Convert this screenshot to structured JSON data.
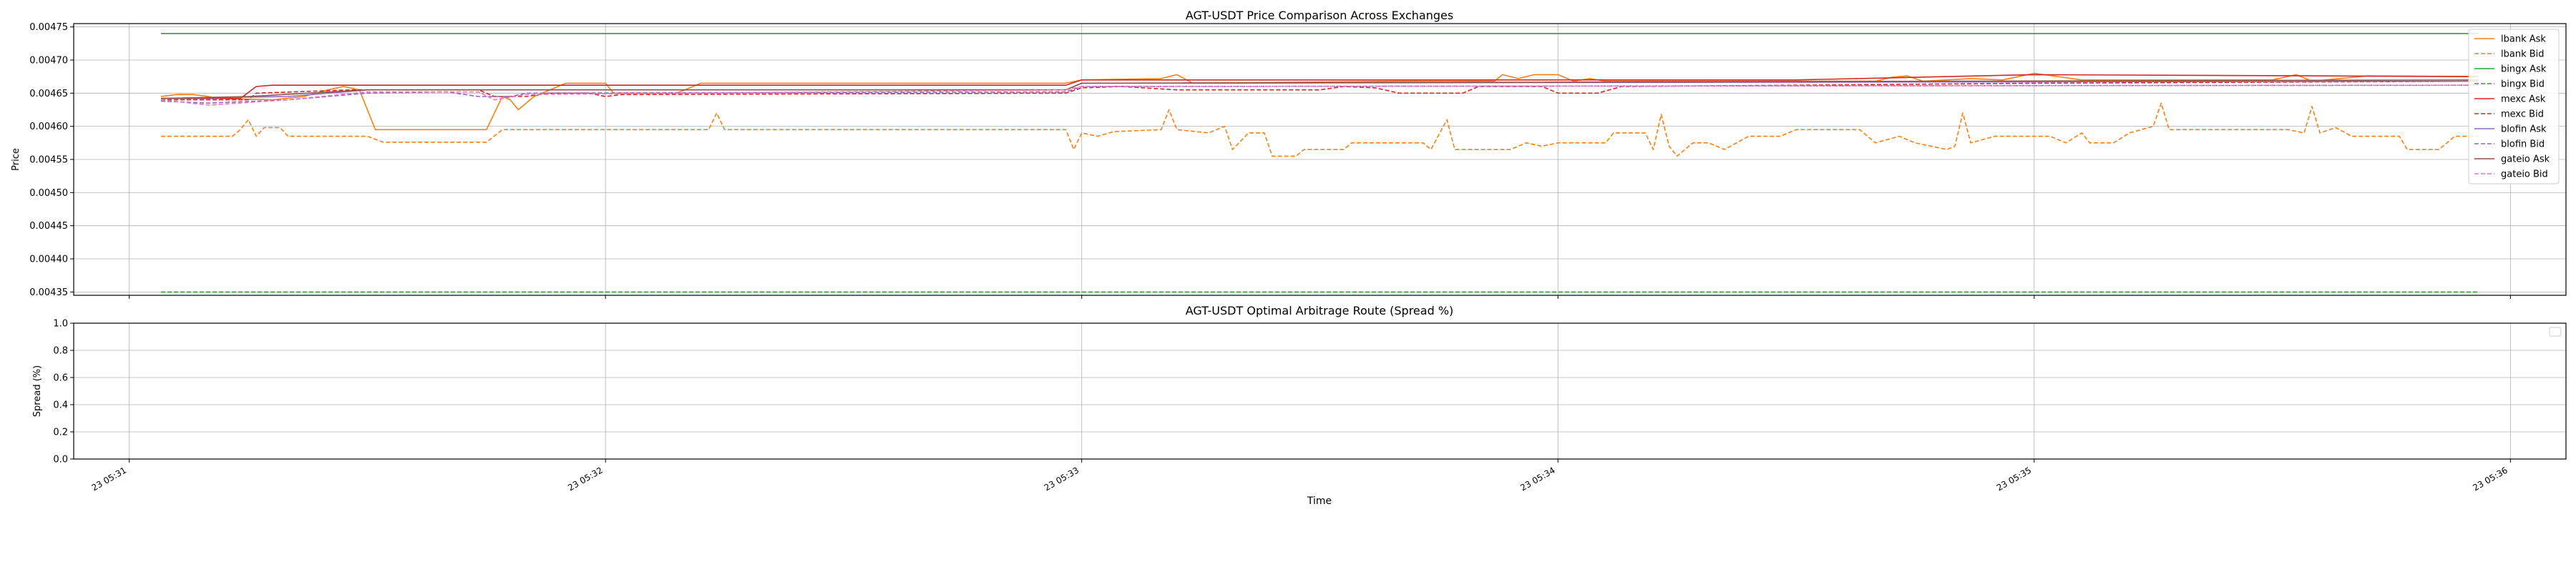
{
  "figure": {
    "xlabel": "Time",
    "x_ticks": [
      "23 05:31",
      "23 05:32",
      "23 05:33",
      "23 05:34",
      "23 05:35",
      "23 05:36"
    ]
  },
  "chart_data": [
    {
      "type": "line",
      "title": "AGT-USDT Price Comparison Across Exchanges",
      "xlabel": "Time",
      "ylabel": "Price",
      "xlim": [
        "23 05:30:53",
        "23 05:36:07"
      ],
      "ylim": [
        0.004345,
        0.004755
      ],
      "y_ticks": [
        "0.00435",
        "0.00440",
        "0.00445",
        "0.00450",
        "0.00455",
        "0.00460",
        "0.00465",
        "0.00470",
        "0.00475"
      ],
      "grid": true,
      "legend_position": "right",
      "series": [
        {
          "name": "lbank Ask",
          "color": "#ff7f0e",
          "dash": "solid",
          "points": [
            [
              "05:31:04",
              0.004645
            ],
            [
              "05:31:06",
              0.004648
            ],
            [
              "05:31:08",
              0.004648
            ],
            [
              "05:31:10",
              0.004645
            ],
            [
              "05:31:11",
              0.004642
            ],
            [
              "05:31:18",
              0.00464
            ],
            [
              "05:31:22",
              0.004645
            ],
            [
              "05:31:25",
              0.004655
            ],
            [
              "05:31:27",
              0.00466
            ],
            [
              "05:31:29",
              0.004655
            ],
            [
              "05:31:31",
              0.004595
            ],
            [
              "05:31:45",
              0.004595
            ],
            [
              "05:31:47",
              0.004645
            ],
            [
              "05:31:48",
              0.00464
            ],
            [
              "05:31:49",
              0.004625
            ],
            [
              "05:31:51",
              0.004645
            ],
            [
              "05:31:55",
              0.004665
            ],
            [
              "05:32:00",
              0.004665
            ],
            [
              "05:32:01",
              0.00465
            ],
            [
              "05:32:09",
              0.00465
            ],
            [
              "05:32:12",
              0.004665
            ],
            [
              "05:32:58",
              0.004665
            ],
            [
              "05:33:00",
              0.00467
            ],
            [
              "05:33:10",
              0.004672
            ],
            [
              "05:33:12",
              0.004678
            ],
            [
              "05:33:14",
              0.004665
            ],
            [
              "05:33:40",
              0.004668
            ],
            [
              "05:33:52",
              0.004668
            ],
            [
              "05:33:53",
              0.004678
            ],
            [
              "05:33:55",
              0.004672
            ],
            [
              "05:33:57",
              0.004678
            ],
            [
              "05:34:00",
              0.004678
            ],
            [
              "05:34:02",
              0.004668
            ],
            [
              "05:34:04",
              0.004672
            ],
            [
              "05:34:06",
              0.004668
            ],
            [
              "05:34:40",
              0.004668
            ],
            [
              "05:34:42",
              0.004674
            ],
            [
              "05:34:44",
              0.004676
            ],
            [
              "05:34:46",
              0.004668
            ],
            [
              "05:34:52",
              0.004672
            ],
            [
              "05:34:56",
              0.00467
            ],
            [
              "05:35:00",
              0.00468
            ],
            [
              "05:35:06",
              0.00467
            ],
            [
              "05:35:30",
              0.00467
            ],
            [
              "05:35:33",
              0.004678
            ],
            [
              "05:35:35",
              0.004668
            ],
            [
              "05:35:42",
              0.004676
            ],
            [
              "05:35:56",
              0.004675
            ]
          ]
        },
        {
          "name": "lbank Bid",
          "color": "#ff7f0e",
          "dash": "dashed",
          "points": [
            [
              "05:31:04",
              0.004585
            ],
            [
              "05:31:13",
              0.004585
            ],
            [
              "05:31:14",
              0.004595
            ],
            [
              "05:31:15",
              0.00461
            ],
            [
              "05:31:16",
              0.004585
            ],
            [
              "05:31:17",
              0.004598
            ],
            [
              "05:31:19",
              0.004598
            ],
            [
              "05:31:20",
              0.004585
            ],
            [
              "05:31:30",
              0.004585
            ],
            [
              "05:31:32",
              0.004576
            ],
            [
              "05:31:45",
              0.004576
            ],
            [
              "05:31:47",
              0.004595
            ],
            [
              "05:32:13",
              0.004595
            ],
            [
              "05:32:14",
              0.00462
            ],
            [
              "05:32:15",
              0.004595
            ],
            [
              "05:32:58",
              0.004595
            ],
            [
              "05:32:59",
              0.004565
            ],
            [
              "05:33:00",
              0.00459
            ],
            [
              "05:33:02",
              0.004585
            ],
            [
              "05:33:04",
              0.004592
            ],
            [
              "05:33:10",
              0.004595
            ],
            [
              "05:33:11",
              0.004625
            ],
            [
              "05:33:12",
              0.004595
            ],
            [
              "05:33:16",
              0.00459
            ],
            [
              "05:33:18",
              0.0046
            ],
            [
              "05:33:19",
              0.004565
            ],
            [
              "05:33:21",
              0.00459
            ],
            [
              "05:33:23",
              0.00459
            ],
            [
              "05:33:24",
              0.004555
            ],
            [
              "05:33:27",
              0.004555
            ],
            [
              "05:33:28",
              0.004565
            ],
            [
              "05:33:33",
              0.004565
            ],
            [
              "05:33:34",
              0.004575
            ],
            [
              "05:33:43",
              0.004575
            ],
            [
              "05:33:44",
              0.004565
            ],
            [
              "05:33:46",
              0.00461
            ],
            [
              "05:33:47",
              0.004565
            ],
            [
              "05:33:54",
              0.004565
            ],
            [
              "05:33:56",
              0.004575
            ],
            [
              "05:33:58",
              0.00457
            ],
            [
              "05:34:00",
              0.004575
            ],
            [
              "05:34:06",
              0.004575
            ],
            [
              "05:34:07",
              0.00459
            ],
            [
              "05:34:11",
              0.00459
            ],
            [
              "05:34:12",
              0.004565
            ],
            [
              "05:34:13",
              0.004618
            ],
            [
              "05:34:14",
              0.00457
            ],
            [
              "05:34:15",
              0.004555
            ],
            [
              "05:34:17",
              0.004575
            ],
            [
              "05:34:19",
              0.004575
            ],
            [
              "05:34:21",
              0.004565
            ],
            [
              "05:34:24",
              0.004585
            ],
            [
              "05:34:28",
              0.004585
            ],
            [
              "05:34:30",
              0.004595
            ],
            [
              "05:34:38",
              0.004595
            ],
            [
              "05:34:40",
              0.004575
            ],
            [
              "05:34:43",
              0.004585
            ],
            [
              "05:34:45",
              0.004575
            ],
            [
              "05:34:49",
              0.004565
            ],
            [
              "05:34:50",
              0.00457
            ],
            [
              "05:34:51",
              0.00462
            ],
            [
              "05:34:52",
              0.004575
            ],
            [
              "05:34:55",
              0.004585
            ],
            [
              "05:35:02",
              0.004585
            ],
            [
              "05:35:04",
              0.004575
            ],
            [
              "05:35:06",
              0.00459
            ],
            [
              "05:35:07",
              0.004575
            ],
            [
              "05:35:10",
              0.004575
            ],
            [
              "05:35:12",
              0.00459
            ],
            [
              "05:35:15",
              0.0046
            ],
            [
              "05:35:16",
              0.004635
            ],
            [
              "05:35:17",
              0.004595
            ],
            [
              "05:35:32",
              0.004595
            ],
            [
              "05:35:34",
              0.00459
            ],
            [
              "05:35:35",
              0.00463
            ],
            [
              "05:35:36",
              0.00459
            ],
            [
              "05:35:38",
              0.004598
            ],
            [
              "05:35:40",
              0.004585
            ],
            [
              "05:35:46",
              0.004585
            ],
            [
              "05:35:47",
              0.004565
            ],
            [
              "05:35:51",
              0.004565
            ],
            [
              "05:35:53",
              0.004585
            ],
            [
              "05:35:56",
              0.004585
            ]
          ]
        },
        {
          "name": "bingx Ask",
          "color": "#2ca02c",
          "dash": "solid",
          "points": [
            [
              "05:31:04",
              0.00474
            ],
            [
              "05:35:56",
              0.00474
            ]
          ]
        },
        {
          "name": "bingx Bid",
          "color": "#2ca02c",
          "dash": "dashed",
          "points": [
            [
              "05:31:04",
              0.00435
            ],
            [
              "05:35:56",
              0.00435
            ]
          ]
        },
        {
          "name": "mexc Ask",
          "color": "#d62728",
          "dash": "solid",
          "points": [
            [
              "05:31:04",
              0.004642
            ],
            [
              "05:31:14",
              0.004642
            ],
            [
              "05:31:16",
              0.00466
            ],
            [
              "05:31:18",
              0.004662
            ],
            [
              "05:31:30",
              0.004662
            ],
            [
              "05:32:58",
              0.004662
            ],
            [
              "05:33:00",
              0.00467
            ],
            [
              "05:34:30",
              0.00467
            ],
            [
              "05:35:00",
              0.004678
            ],
            [
              "05:35:56",
              0.004675
            ]
          ]
        },
        {
          "name": "mexc Bid",
          "color": "#d62728",
          "dash": "dashed",
          "points": [
            [
              "05:31:04",
              0.00464
            ],
            [
              "05:31:15",
              0.00464
            ],
            [
              "05:31:16",
              0.00465
            ],
            [
              "05:31:28",
              0.004655
            ],
            [
              "05:31:44",
              0.004655
            ],
            [
              "05:31:46",
              0.004645
            ],
            [
              "05:31:50",
              0.004645
            ],
            [
              "05:31:53",
              0.00465
            ],
            [
              "05:31:58",
              0.00465
            ],
            [
              "05:32:00",
              0.004645
            ],
            [
              "05:32:02",
              0.004648
            ],
            [
              "05:32:58",
              0.00465
            ],
            [
              "05:33:00",
              0.004658
            ],
            [
              "05:33:05",
              0.00466
            ],
            [
              "05:33:12",
              0.004655
            ],
            [
              "05:33:30",
              0.004655
            ],
            [
              "05:33:33",
              0.00466
            ],
            [
              "05:33:37",
              0.004658
            ],
            [
              "05:33:40",
              0.00465
            ],
            [
              "05:33:48",
              0.00465
            ],
            [
              "05:33:50",
              0.00466
            ],
            [
              "05:33:58",
              0.00466
            ],
            [
              "05:34:00",
              0.00465
            ],
            [
              "05:34:05",
              0.00465
            ],
            [
              "05:34:08",
              0.00466
            ],
            [
              "05:34:30",
              0.004662
            ],
            [
              "05:35:00",
              0.004665
            ],
            [
              "05:35:56",
              0.004668
            ]
          ]
        },
        {
          "name": "blofin Ask",
          "color": "#9467bd",
          "dash": "solid",
          "points": [
            [
              "05:31:04",
              0.004642
            ],
            [
              "05:31:20",
              0.004645
            ],
            [
              "05:31:30",
              0.004655
            ],
            [
              "05:32:58",
              0.004655
            ],
            [
              "05:33:00",
              0.004665
            ],
            [
              "05:35:56",
              0.004668
            ]
          ]
        },
        {
          "name": "blofin Bid",
          "color": "#9467bd",
          "dash": "dashed",
          "points": [
            [
              "05:31:04",
              0.004638
            ],
            [
              "05:31:10",
              0.004635
            ],
            [
              "05:31:20",
              0.00464
            ],
            [
              "05:31:30",
              0.00465
            ],
            [
              "05:31:40",
              0.004652
            ],
            [
              "05:31:44",
              0.004645
            ],
            [
              "05:31:48",
              0.004645
            ],
            [
              "05:31:50",
              0.00465
            ],
            [
              "05:32:58",
              0.004652
            ],
            [
              "05:33:00",
              0.00466
            ],
            [
              "05:35:56",
              0.004662
            ]
          ]
        },
        {
          "name": "gateio Ask",
          "color": "#8c564b",
          "dash": "solid",
          "points": [
            [
              "05:31:04",
              0.004642
            ],
            [
              "05:31:15",
              0.004645
            ],
            [
              "05:31:30",
              0.004655
            ],
            [
              "05:32:58",
              0.004655
            ],
            [
              "05:33:00",
              0.004665
            ],
            [
              "05:35:56",
              0.00467
            ]
          ]
        },
        {
          "name": "gateio Bid",
          "color": "#e377c2",
          "dash": "dashed",
          "points": [
            [
              "05:31:04",
              0.00464
            ],
            [
              "05:31:10",
              0.004632
            ],
            [
              "05:31:20",
              0.00464
            ],
            [
              "05:31:30",
              0.004652
            ],
            [
              "05:31:44",
              0.004652
            ],
            [
              "05:31:46",
              0.00464
            ],
            [
              "05:31:50",
              0.004648
            ],
            [
              "05:32:58",
              0.004655
            ],
            [
              "05:33:00",
              0.00466
            ],
            [
              "05:35:56",
              0.004662
            ]
          ]
        }
      ]
    },
    {
      "type": "line",
      "title": "AGT-USDT Optimal Arbitrage Route (Spread %)",
      "xlabel": "Time",
      "ylabel": "Spread (%)",
      "xlim": [
        "23 05:30:53",
        "23 05:36:07"
      ],
      "ylim": [
        0.0,
        1.0
      ],
      "y_ticks": [
        "0.0",
        "0.2",
        "0.4",
        "0.6",
        "0.8",
        "1.0"
      ],
      "grid": true,
      "legend_position": "top-right",
      "series": []
    }
  ]
}
